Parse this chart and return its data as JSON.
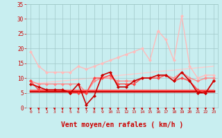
{
  "background_color": "#c8eef0",
  "grid_color": "#a0c8c8",
  "xlabel": "Vent moyen/en rafales ( km/h )",
  "xlabel_color": "#cc0000",
  "xlabel_fontsize": 7,
  "tick_color": "#cc0000",
  "xlim": [
    -0.5,
    23.5
  ],
  "ylim": [
    0,
    35
  ],
  "yticks": [
    0,
    5,
    10,
    15,
    20,
    25,
    30,
    35
  ],
  "xticks": [
    0,
    1,
    2,
    3,
    4,
    5,
    6,
    7,
    8,
    9,
    10,
    11,
    12,
    13,
    14,
    15,
    16,
    17,
    18,
    19,
    20,
    21,
    22,
    23
  ],
  "series": [
    {
      "x": [
        0,
        1,
        2,
        3,
        4,
        5,
        6,
        7,
        8,
        9,
        10,
        11,
        12,
        13,
        14,
        15,
        16,
        17,
        18,
        19,
        20,
        21,
        22,
        23
      ],
      "y": [
        19,
        14,
        12,
        12,
        12,
        12,
        14,
        13,
        14,
        15,
        16,
        17,
        18,
        19,
        20,
        16,
        26,
        23,
        16,
        31,
        14,
        10,
        11,
        11
      ],
      "color": "#ffbbbb",
      "linewidth": 1.0,
      "marker": "D",
      "markersize": 2.0,
      "zorder": 2
    },
    {
      "x": [
        0,
        23
      ],
      "y": [
        8,
        14
      ],
      "color": "#ffcccc",
      "linewidth": 1.0,
      "marker": null,
      "zorder": 1
    },
    {
      "x": [
        0,
        1,
        2,
        3,
        4,
        5,
        6,
        7,
        8,
        9,
        10,
        11,
        12,
        13,
        14,
        15,
        16,
        17,
        18,
        19,
        20,
        21,
        22,
        23
      ],
      "y": [
        9,
        8,
        8,
        8,
        8,
        8,
        8,
        5,
        9,
        10,
        10,
        9,
        9,
        9,
        10,
        10,
        11,
        11,
        10,
        12,
        10,
        9,
        10,
        10
      ],
      "color": "#ff8888",
      "linewidth": 1.0,
      "marker": "D",
      "markersize": 2.0,
      "zorder": 3
    },
    {
      "x": [
        0,
        1,
        2,
        3,
        4,
        5,
        6,
        7,
        8,
        9,
        10,
        11,
        12,
        13,
        14,
        15,
        16,
        17,
        18,
        19,
        20,
        21,
        22,
        23
      ],
      "y": [
        8,
        7,
        6,
        6,
        6,
        5,
        8,
        1,
        4,
        11,
        12,
        7,
        7,
        9,
        10,
        10,
        11,
        11,
        9,
        12,
        9,
        5,
        5,
        9
      ],
      "color": "#cc0000",
      "linewidth": 1.2,
      "marker": "D",
      "markersize": 2.0,
      "zorder": 5
    },
    {
      "x": [
        0,
        1,
        2,
        3,
        4,
        5,
        6,
        7,
        8,
        9,
        10,
        11,
        12,
        13,
        14,
        15,
        16,
        17,
        18,
        19,
        20,
        21,
        22,
        23
      ],
      "y": [
        9,
        6,
        6,
        6,
        6,
        5,
        5,
        5,
        10,
        10,
        11,
        8,
        8,
        8,
        10,
        10,
        10,
        11,
        9,
        10,
        9,
        6,
        5,
        9
      ],
      "color": "#ff4444",
      "linewidth": 1.0,
      "marker": "D",
      "markersize": 2.0,
      "zorder": 4
    },
    {
      "x": [
        0,
        23
      ],
      "y": [
        5.5,
        5.5
      ],
      "color": "#cc0000",
      "linewidth": 2.5,
      "marker": null,
      "zorder": 3
    },
    {
      "x": [
        0,
        23
      ],
      "y": [
        5.8,
        5.8
      ],
      "color": "#ff5555",
      "linewidth": 1.5,
      "marker": null,
      "zorder": 3
    }
  ]
}
